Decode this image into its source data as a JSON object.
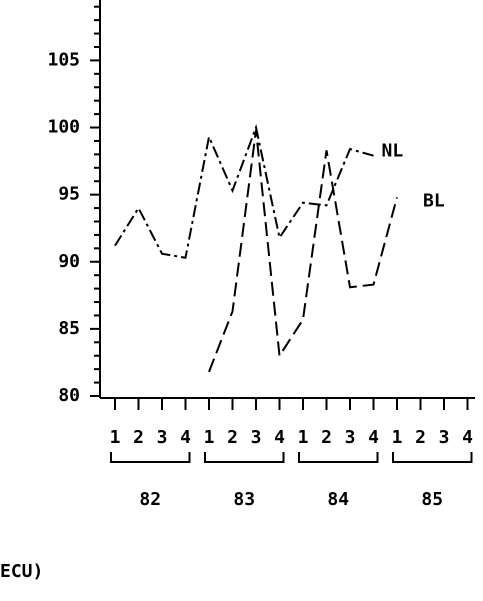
{
  "chart_data": {
    "type": "line",
    "categories": [
      "1",
      "2",
      "3",
      "4",
      "1",
      "2",
      "3",
      "4",
      "1",
      "2",
      "3",
      "4",
      "1",
      "2",
      "3",
      "4"
    ],
    "groups": [
      {
        "label": "82",
        "from": 0,
        "to": 3
      },
      {
        "label": "83",
        "from": 4,
        "to": 7
      },
      {
        "label": "84",
        "from": 8,
        "to": 11
      },
      {
        "label": "85",
        "from": 12,
        "to": 15
      }
    ],
    "series": [
      {
        "name": "NL",
        "color": "#000000",
        "dash": "12,4,3,4",
        "values": [
          91.2,
          94,
          90.6,
          90.3,
          99.3,
          95.3,
          100,
          91.8,
          94.4,
          94.2,
          98.4,
          97.9,
          null,
          null,
          null,
          null
        ]
      },
      {
        "name": "BL",
        "color": "#000000",
        "dash": "14,6",
        "values": [
          null,
          null,
          null,
          null,
          81.8,
          86.3,
          99.8,
          83,
          85.7,
          98.3,
          88.1,
          88.3,
          94.8,
          null,
          null,
          null
        ]
      }
    ],
    "ylim": [
      80,
      109.5
    ],
    "yticks": [
      80,
      85,
      90,
      95,
      100,
      105
    ],
    "yminor_ticks": [
      81,
      82,
      83,
      84,
      86,
      87,
      88,
      89,
      91,
      92,
      93,
      94,
      96,
      97,
      98,
      99,
      101,
      102,
      103,
      104,
      106,
      107,
      108,
      109
    ],
    "footnote": "ECU)"
  }
}
